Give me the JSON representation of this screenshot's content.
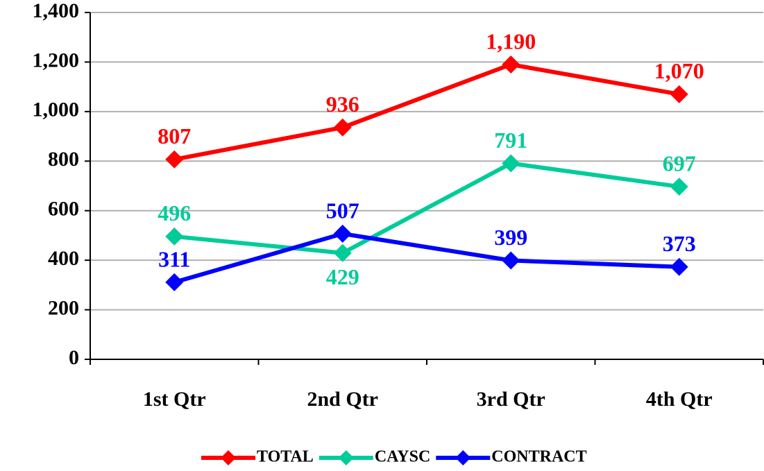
{
  "chart_data": {
    "type": "line",
    "categories": [
      "1st Qtr",
      "2nd Qtr",
      "3rd Qtr",
      "4th Qtr"
    ],
    "series": [
      {
        "name": "TOTAL",
        "color": "#ff0000",
        "values": [
          807,
          936,
          1190,
          1070
        ],
        "value_labels": [
          "807",
          "936",
          "1,190",
          "1,070"
        ]
      },
      {
        "name": "CAYSC",
        "color": "#00cc99",
        "values": [
          496,
          429,
          791,
          697
        ]
      },
      {
        "name": "CONTRACT",
        "color": "#0000ff",
        "values": [
          311,
          507,
          399,
          373
        ]
      }
    ],
    "ylim": [
      0,
      1400
    ],
    "yticks": [
      0,
      200,
      400,
      600,
      800,
      {
        "value": 1000,
        "label": "1,000"
      },
      {
        "value": 1200,
        "label": "1,200"
      },
      {
        "value": 1400,
        "label": "1,400"
      }
    ],
    "grid": true,
    "legend": "bottom"
  }
}
